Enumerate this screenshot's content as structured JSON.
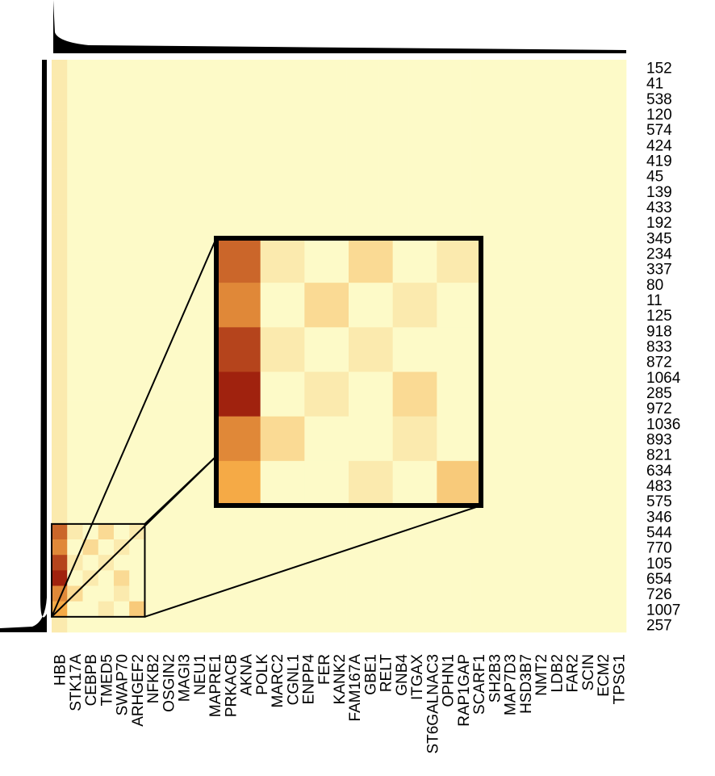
{
  "chart_data": {
    "type": "heatmap",
    "rows": [
      "152",
      "41",
      "538",
      "120",
      "574",
      "424",
      "419",
      "45",
      "139",
      "433",
      "192",
      "345",
      "234",
      "337",
      "80",
      "11",
      "125",
      "918",
      "833",
      "872",
      "1064",
      "285",
      "972",
      "1036",
      "893",
      "821",
      "634",
      "483",
      "575",
      "346",
      "544",
      "770",
      "105",
      "654",
      "726",
      "1007",
      "257"
    ],
    "columns": [
      "HBB",
      "STK17A",
      "CEBPB",
      "TMED5",
      "SWAP70",
      "ARHGEF2",
      "NFKB2",
      "OSGIN2",
      "MAGI3",
      "NEU1",
      "MAPRE1",
      "PRKACB",
      "AKNA",
      "POLK",
      "MARC2",
      "CGNL1",
      "ENPP4",
      "FER",
      "KANK2",
      "FAM167A",
      "GBE1",
      "RELT",
      "GNB4",
      "ITGAX",
      "ST6GALNAC3",
      "OPHN1",
      "RAP1GAP",
      "SCARF1",
      "SH2B3",
      "MAP7D3",
      "HSD3B7",
      "NMT2",
      "LDB2",
      "FAR2",
      "SCIN",
      "ECM2",
      "TPSG1"
    ],
    "values": [
      [
        1,
        0,
        0,
        0,
        0,
        0,
        0,
        0,
        0,
        0,
        0,
        0,
        0,
        0,
        0,
        0,
        0,
        0,
        0,
        0,
        0,
        0,
        0,
        0,
        0,
        0,
        0,
        0,
        0,
        0,
        0,
        0,
        0,
        0,
        0,
        0,
        0
      ],
      [
        1,
        0,
        0,
        0,
        0,
        0,
        0,
        0,
        0,
        0,
        0,
        0,
        0,
        0,
        0,
        0,
        0,
        0,
        0,
        0,
        0,
        0,
        0,
        0,
        0,
        0,
        0,
        0,
        0,
        0,
        0,
        0,
        0,
        0,
        0,
        0,
        0
      ],
      [
        1,
        0,
        0,
        0,
        0,
        0,
        0,
        0,
        0,
        0,
        0,
        0,
        0,
        0,
        0,
        0,
        0,
        0,
        0,
        0,
        0,
        0,
        0,
        0,
        0,
        0,
        0,
        0,
        0,
        0,
        0,
        0,
        0,
        0,
        0,
        0,
        0
      ],
      [
        1,
        0,
        0,
        0,
        0,
        0,
        0,
        0,
        0,
        0,
        0,
        0,
        0,
        0,
        0,
        0,
        0,
        0,
        0,
        0,
        0,
        0,
        0,
        0,
        0,
        0,
        0,
        0,
        0,
        0,
        0,
        0,
        0,
        0,
        0,
        0,
        0
      ],
      [
        1,
        0,
        0,
        0,
        0,
        0,
        0,
        0,
        0,
        0,
        0,
        0,
        0,
        0,
        0,
        0,
        0,
        0,
        0,
        0,
        0,
        0,
        0,
        0,
        0,
        0,
        0,
        0,
        0,
        0,
        0,
        0,
        0,
        0,
        0,
        0,
        0
      ],
      [
        1,
        0,
        0,
        0,
        0,
        0,
        0,
        0,
        0,
        0,
        0,
        0,
        0,
        0,
        0,
        0,
        0,
        0,
        0,
        0,
        0,
        0,
        0,
        0,
        0,
        0,
        0,
        0,
        0,
        0,
        0,
        0,
        0,
        0,
        0,
        0,
        0
      ],
      [
        1,
        0,
        0,
        0,
        0,
        0,
        0,
        0,
        0,
        0,
        0,
        0,
        0,
        0,
        0,
        0,
        0,
        0,
        0,
        0,
        0,
        0,
        0,
        0,
        0,
        0,
        0,
        0,
        0,
        0,
        0,
        0,
        0,
        0,
        0,
        0,
        0
      ],
      [
        1,
        0,
        0,
        0,
        0,
        0,
        0,
        0,
        0,
        0,
        0,
        0,
        0,
        0,
        0,
        0,
        0,
        0,
        0,
        0,
        0,
        0,
        0,
        0,
        0,
        0,
        0,
        0,
        0,
        0,
        0,
        0,
        0,
        0,
        0,
        0,
        0
      ],
      [
        1,
        0,
        0,
        0,
        0,
        0,
        0,
        0,
        0,
        0,
        0,
        0,
        0,
        0,
        0,
        0,
        0,
        0,
        0,
        0,
        0,
        0,
        0,
        0,
        0,
        0,
        0,
        0,
        0,
        0,
        0,
        0,
        0,
        0,
        0,
        0,
        0
      ],
      [
        1,
        0,
        0,
        0,
        0,
        0,
        0,
        0,
        0,
        0,
        0,
        0,
        0,
        0,
        0,
        0,
        0,
        0,
        0,
        0,
        0,
        0,
        0,
        0,
        0,
        0,
        0,
        0,
        0,
        0,
        0,
        0,
        0,
        0,
        0,
        0,
        0
      ],
      [
        1,
        0,
        0,
        0,
        0,
        0,
        0,
        0,
        0,
        0,
        0,
        0,
        0,
        0,
        0,
        0,
        0,
        0,
        0,
        0,
        0,
        0,
        0,
        0,
        0,
        0,
        0,
        0,
        0,
        0,
        0,
        0,
        0,
        0,
        0,
        0,
        0
      ],
      [
        1,
        0,
        0,
        0,
        0,
        0,
        0,
        0,
        0,
        0,
        0,
        0,
        0,
        0,
        0,
        0,
        0,
        0,
        0,
        0,
        0,
        0,
        0,
        0,
        0,
        0,
        0,
        0,
        0,
        0,
        0,
        0,
        0,
        0,
        0,
        0,
        0
      ],
      [
        1,
        0,
        0,
        0,
        0,
        0,
        0,
        0,
        0,
        0,
        0,
        0,
        0,
        0,
        0,
        0,
        0,
        0,
        0,
        0,
        0,
        0,
        0,
        0,
        0,
        0,
        0,
        0,
        0,
        0,
        0,
        0,
        0,
        0,
        0,
        0,
        0
      ],
      [
        1,
        0,
        0,
        0,
        0,
        0,
        0,
        0,
        0,
        0,
        0,
        0,
        0,
        0,
        0,
        0,
        0,
        0,
        0,
        0,
        0,
        0,
        0,
        0,
        0,
        0,
        0,
        0,
        0,
        0,
        0,
        0,
        0,
        0,
        0,
        0,
        0
      ],
      [
        1,
        0,
        0,
        0,
        0,
        0,
        0,
        0,
        0,
        0,
        0,
        0,
        0,
        0,
        0,
        0,
        0,
        0,
        0,
        0,
        0,
        0,
        0,
        0,
        0,
        0,
        0,
        0,
        0,
        0,
        0,
        0,
        0,
        0,
        0,
        0,
        0
      ],
      [
        1,
        0,
        0,
        0,
        0,
        0,
        0,
        0,
        0,
        0,
        0,
        0,
        0,
        0,
        0,
        0,
        0,
        0,
        0,
        0,
        0,
        0,
        0,
        0,
        0,
        0,
        0,
        0,
        0,
        0,
        0,
        0,
        0,
        0,
        0,
        0,
        0
      ],
      [
        1,
        0,
        0,
        0,
        0,
        0,
        0,
        0,
        0,
        0,
        0,
        0,
        0,
        0,
        0,
        0,
        0,
        0,
        0,
        0,
        0,
        0,
        0,
        0,
        0,
        0,
        0,
        0,
        0,
        0,
        0,
        0,
        0,
        0,
        0,
        0,
        0
      ],
      [
        1,
        0,
        0,
        0,
        0,
        0,
        0,
        0,
        0,
        0,
        0,
        0,
        0,
        0,
        0,
        0,
        0,
        0,
        0,
        0,
        0,
        0,
        0,
        0,
        0,
        0,
        0,
        0,
        0,
        0,
        0,
        0,
        0,
        0,
        0,
        0,
        0
      ],
      [
        1,
        0,
        0,
        0,
        0,
        0,
        0,
        0,
        0,
        0,
        0,
        0,
        0,
        0,
        0,
        0,
        0,
        0,
        0,
        0,
        0,
        0,
        0,
        0,
        0,
        0,
        0,
        0,
        0,
        0,
        0,
        0,
        0,
        0,
        0,
        0,
        0
      ],
      [
        1,
        0,
        0,
        0,
        0,
        0,
        0,
        0,
        0,
        0,
        0,
        0,
        0,
        0,
        0,
        0,
        0,
        0,
        0,
        0,
        0,
        0,
        0,
        0,
        0,
        0,
        0,
        0,
        0,
        0,
        0,
        0,
        0,
        0,
        0,
        0,
        0
      ],
      [
        1,
        0,
        0,
        0,
        0,
        0,
        0,
        0,
        0,
        0,
        0,
        0,
        0,
        0,
        0,
        0,
        0,
        0,
        0,
        0,
        0,
        0,
        0,
        0,
        0,
        0,
        0,
        0,
        0,
        0,
        0,
        0,
        0,
        0,
        0,
        0,
        0
      ],
      [
        1,
        0,
        0,
        0,
        0,
        0,
        0,
        0,
        0,
        0,
        0,
        0,
        0,
        0,
        0,
        0,
        0,
        0,
        0,
        0,
        0,
        0,
        0,
        0,
        0,
        0,
        0,
        0,
        0,
        0,
        0,
        0,
        0,
        0,
        0,
        0,
        0
      ],
      [
        1,
        0,
        0,
        0,
        0,
        0,
        0,
        0,
        0,
        0,
        0,
        0,
        0,
        0,
        0,
        0,
        0,
        0,
        0,
        0,
        0,
        0,
        0,
        0,
        0,
        0,
        0,
        0,
        0,
        0,
        0,
        0,
        0,
        0,
        0,
        0,
        0
      ],
      [
        1,
        0,
        0,
        0,
        0,
        0,
        0,
        0,
        0,
        0,
        0,
        0,
        0,
        0,
        0,
        0,
        0,
        0,
        0,
        0,
        0,
        0,
        0,
        0,
        0,
        0,
        0,
        0,
        0,
        0,
        0,
        0,
        0,
        0,
        0,
        0,
        0
      ],
      [
        1,
        0,
        0,
        0,
        0,
        0,
        0,
        0,
        0,
        0,
        0,
        0,
        0,
        0,
        0,
        0,
        0,
        0,
        0,
        0,
        0,
        0,
        0,
        0,
        0,
        0,
        0,
        0,
        0,
        0,
        0,
        0,
        0,
        0,
        0,
        0,
        0
      ],
      [
        1,
        0,
        0,
        0,
        0,
        0,
        0,
        0,
        0,
        0,
        0,
        0,
        0,
        0,
        0,
        0,
        0,
        0,
        0,
        0,
        0,
        0,
        0,
        0,
        0,
        0,
        0,
        0,
        0,
        0,
        0,
        0,
        0,
        0,
        0,
        0,
        0
      ],
      [
        1,
        0,
        0,
        0,
        0,
        0,
        0,
        0,
        0,
        0,
        0,
        0,
        0,
        0,
        0,
        0,
        0,
        0,
        0,
        0,
        0,
        0,
        0,
        0,
        0,
        0,
        0,
        0,
        0,
        0,
        0,
        0,
        0,
        0,
        0,
        0,
        0
      ],
      [
        1,
        0,
        0,
        0,
        0,
        0,
        0,
        0,
        0,
        0,
        0,
        0,
        0,
        0,
        0,
        0,
        0,
        0,
        0,
        0,
        0,
        0,
        0,
        0,
        0,
        0,
        0,
        0,
        0,
        0,
        0,
        0,
        0,
        0,
        0,
        0,
        0
      ],
      [
        1,
        0,
        0,
        0,
        0,
        0,
        0,
        0,
        0,
        0,
        0,
        0,
        0,
        0,
        0,
        0,
        0,
        0,
        0,
        0,
        0,
        0,
        0,
        0,
        0,
        0,
        0,
        0,
        0,
        0,
        0,
        0,
        0,
        0,
        0,
        0,
        0
      ],
      [
        1,
        0,
        0,
        0,
        0,
        0,
        0,
        0,
        0,
        0,
        0,
        0,
        0,
        0,
        0,
        0,
        0,
        0,
        0,
        0,
        0,
        0,
        0,
        0,
        0,
        0,
        0,
        0,
        0,
        0,
        0,
        0,
        0,
        0,
        0,
        0,
        0
      ],
      [
        7,
        1,
        0,
        2,
        0,
        1,
        0,
        0,
        0,
        0,
        0,
        0,
        0,
        0,
        0,
        0,
        0,
        0,
        0,
        0,
        0,
        0,
        0,
        0,
        0,
        0,
        0,
        0,
        0,
        0,
        0,
        0,
        0,
        0,
        0,
        0,
        0
      ],
      [
        6,
        0,
        2,
        0,
        1,
        0,
        0,
        0,
        0,
        0,
        0,
        0,
        0,
        0,
        0,
        0,
        0,
        0,
        0,
        0,
        0,
        0,
        0,
        0,
        0,
        0,
        0,
        0,
        0,
        0,
        0,
        0,
        0,
        0,
        0,
        0,
        0
      ],
      [
        8,
        1,
        0,
        1,
        0,
        0,
        0,
        0,
        0,
        0,
        0,
        0,
        0,
        0,
        0,
        0,
        0,
        0,
        0,
        0,
        0,
        0,
        0,
        0,
        0,
        0,
        0,
        0,
        0,
        0,
        0,
        0,
        0,
        0,
        0,
        0,
        0
      ],
      [
        9,
        0,
        1,
        0,
        2,
        0,
        0,
        0,
        0,
        0,
        0,
        0,
        0,
        0,
        0,
        0,
        0,
        0,
        0,
        0,
        0,
        0,
        0,
        0,
        0,
        0,
        0,
        0,
        0,
        0,
        0,
        0,
        0,
        0,
        0,
        0,
        0
      ],
      [
        6,
        2,
        0,
        0,
        1,
        0,
        0,
        0,
        0,
        0,
        0,
        0,
        0,
        0,
        0,
        0,
        0,
        0,
        0,
        0,
        0,
        0,
        0,
        0,
        0,
        0,
        0,
        0,
        0,
        0,
        0,
        0,
        0,
        0,
        0,
        0,
        0
      ],
      [
        5,
        0,
        0,
        1,
        0,
        3,
        0,
        0,
        0,
        0,
        0,
        0,
        0,
        0,
        0,
        0,
        0,
        0,
        0,
        0,
        0,
        0,
        0,
        0,
        0,
        0,
        0,
        0,
        0,
        0,
        0,
        0,
        0,
        0,
        0,
        0,
        0
      ],
      [
        1,
        0,
        0,
        0,
        0,
        0,
        0,
        0,
        0,
        0,
        0,
        0,
        0,
        0,
        0,
        0,
        0,
        0,
        0,
        0,
        0,
        0,
        0,
        0,
        0,
        0,
        0,
        0,
        0,
        0,
        0,
        0,
        0,
        0,
        0,
        0,
        0
      ]
    ]
  }
}
